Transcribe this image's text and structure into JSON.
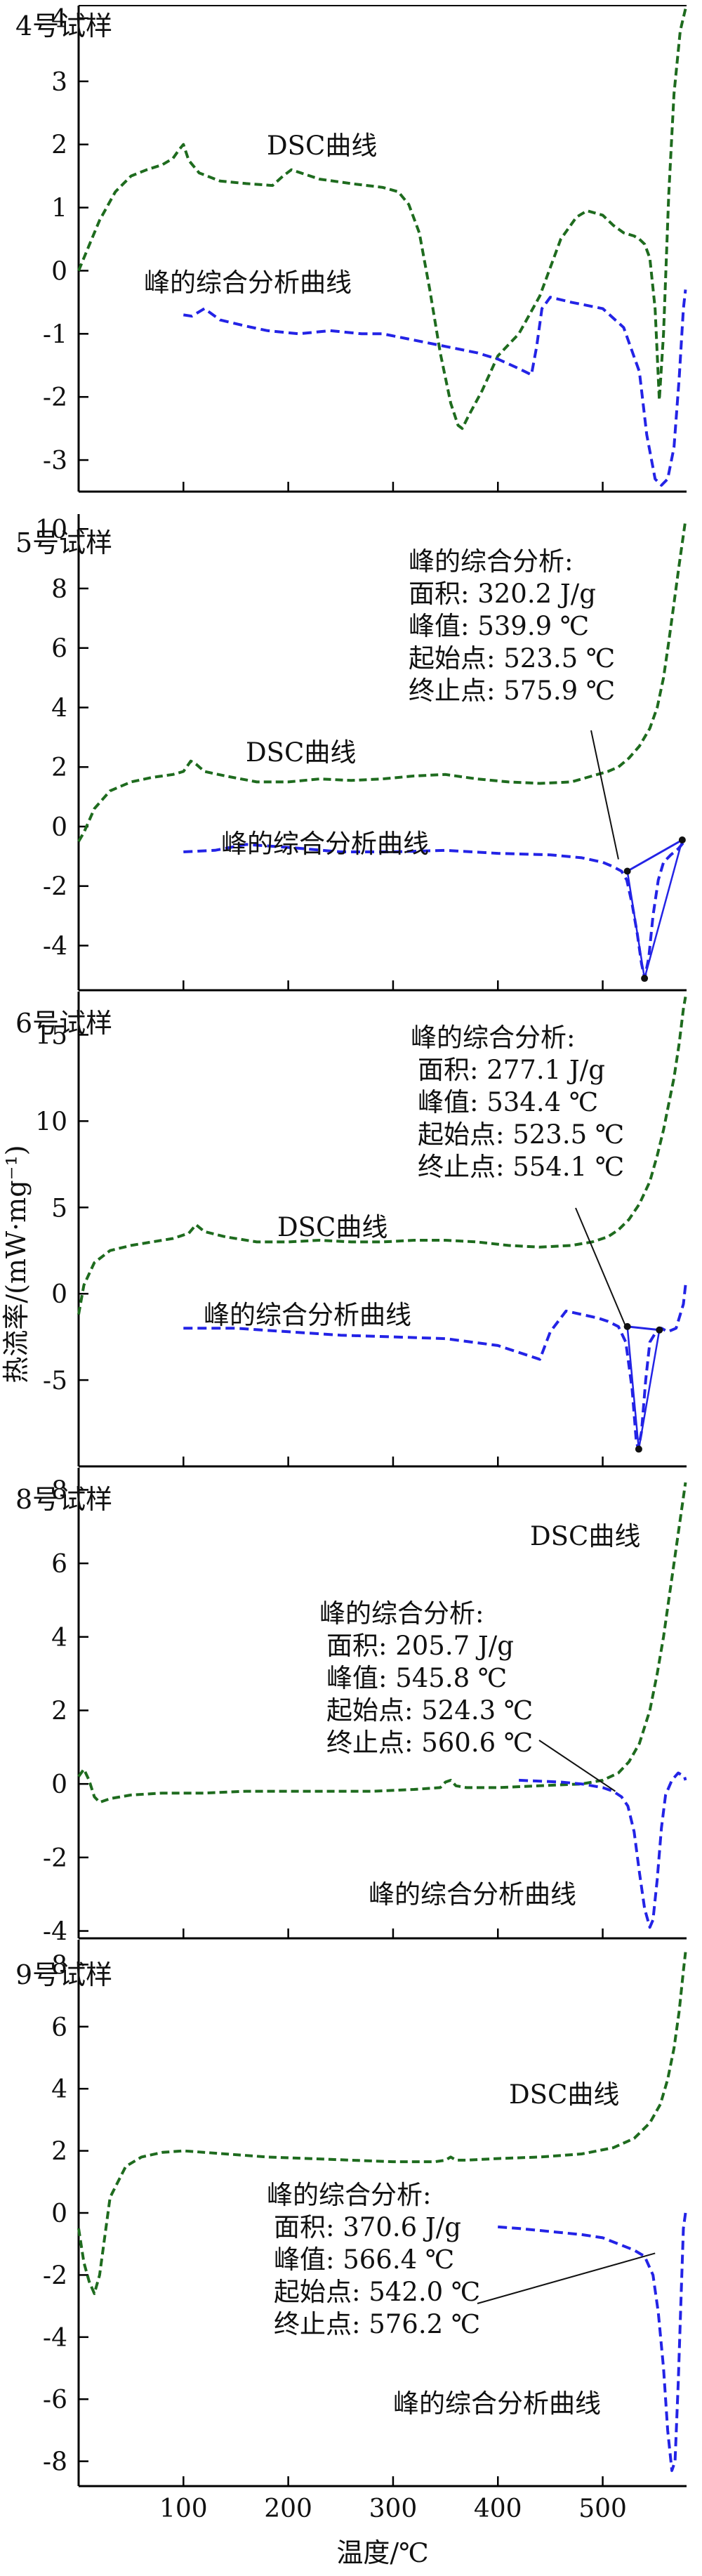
{
  "colors": {
    "dsc": "#1e6b1e",
    "peak": "#2323e6",
    "axis": "#000000"
  },
  "chart_data": {
    "type": "line",
    "shared_x": true,
    "xlabel": "温度/℃",
    "ylabel": "热流率/(mW·mg⁻¹)",
    "xlim": [
      0,
      580
    ],
    "xticks": [
      100,
      200,
      300,
      400,
      500
    ],
    "panels": [
      {
        "title": "4号试样",
        "ylim": [
          -3.5,
          4.2
        ],
        "yticks": [
          -3,
          -2,
          -1,
          0,
          1,
          2,
          3,
          4
        ],
        "dsc_label": "DSC曲线",
        "peak_label": "峰的综合分析曲线",
        "analysis": null,
        "series": [
          {
            "name": "DSC曲线",
            "style": "dsc",
            "x": [
              0,
              10,
              20,
              35,
              50,
              65,
              80,
              90,
              96,
              100,
              105,
              115,
              135,
              160,
              185,
              195,
              203,
              212,
              230,
              260,
              290,
              305,
              315,
              325,
              335,
              345,
              355,
              362,
              366,
              372,
              385,
              400,
              420,
              440,
              460,
              475,
              485,
              500,
              510,
              520,
              530,
              535,
              540,
              545,
              550,
              554,
              558,
              563,
              568,
              574,
              579
            ],
            "y": [
              0,
              0.4,
              0.8,
              1.25,
              1.5,
              1.6,
              1.68,
              1.78,
              1.92,
              2.0,
              1.75,
              1.55,
              1.42,
              1.38,
              1.35,
              1.5,
              1.6,
              1.55,
              1.45,
              1.38,
              1.32,
              1.25,
              1.05,
              0.6,
              -0.3,
              -1.3,
              -2.1,
              -2.45,
              -2.5,
              -2.3,
              -1.9,
              -1.35,
              -1.0,
              -0.4,
              0.5,
              0.85,
              0.95,
              0.88,
              0.72,
              0.6,
              0.55,
              0.5,
              0.42,
              0.2,
              -0.6,
              -2.05,
              -1.0,
              1.2,
              2.8,
              3.8,
              4.15
            ]
          },
          {
            "name": "峰的综合分析曲线",
            "style": "peak",
            "x": [
              100,
              108,
              115,
              120,
              135,
              160,
              180,
              210,
              240,
              270,
              290,
              320,
              350,
              380,
              400,
              420,
              432,
              437,
              442,
              450,
              470,
              500,
              520,
              535,
              542,
              550,
              556,
              562,
              568,
              573,
              577,
              579
            ],
            "y": [
              -0.7,
              -0.72,
              -0.65,
              -0.6,
              -0.78,
              -0.88,
              -0.95,
              -1.0,
              -0.95,
              -1.0,
              -1.0,
              -1.1,
              -1.2,
              -1.3,
              -1.4,
              -1.55,
              -1.65,
              -1.2,
              -0.6,
              -0.42,
              -0.5,
              -0.6,
              -0.9,
              -1.6,
              -2.6,
              -3.3,
              -3.4,
              -3.3,
              -2.8,
              -1.7,
              -0.6,
              -0.3
            ]
          }
        ]
      },
      {
        "title": "5号试样",
        "ylim": [
          -5.5,
          10.5
        ],
        "yticks": [
          -4,
          -2,
          0,
          2,
          4,
          6,
          8,
          10
        ],
        "dsc_label": "DSC曲线",
        "peak_label": "峰的综合分析曲线",
        "analysis": {
          "heading": "峰的综合分析:",
          "lines": [
            "面积: 320.2 J/g",
            "峰值: 539.9 ℃",
            "起始点: 523.5 ℃",
            "终止点: 575.9 ℃"
          ]
        },
        "series": [
          {
            "name": "DSC曲线",
            "style": "dsc",
            "x": [
              0,
              5,
              15,
              30,
              50,
              70,
              90,
              100,
              107,
              112,
              120,
              140,
              170,
              200,
              230,
              260,
              290,
              320,
              350,
              380,
              410,
              440,
              470,
              490,
              505,
              515,
              525,
              535,
              545,
              552,
              558,
              563,
              568,
              573,
              577,
              579
            ],
            "y": [
              -0.5,
              -0.2,
              0.6,
              1.2,
              1.5,
              1.65,
              1.75,
              1.85,
              2.2,
              2.1,
              1.85,
              1.7,
              1.5,
              1.5,
              1.6,
              1.55,
              1.6,
              1.7,
              1.75,
              1.6,
              1.5,
              1.45,
              1.5,
              1.7,
              1.85,
              2.0,
              2.3,
              2.7,
              3.3,
              4.0,
              5.0,
              6.2,
              7.5,
              8.8,
              9.8,
              10.3
            ]
          },
          {
            "name": "峰的综合分析曲线",
            "style": "peak",
            "x": [
              100,
              130,
              160,
              200,
              250,
              300,
              350,
              400,
              450,
              480,
              500,
              510,
              518,
              523,
              528,
              533,
              537,
              540,
              544,
              548,
              553,
              558,
              565,
              572,
              578,
              579
            ],
            "y": [
              -0.85,
              -0.8,
              -0.6,
              -0.7,
              -0.85,
              -0.85,
              -0.8,
              -0.9,
              -0.95,
              -1.05,
              -1.2,
              -1.35,
              -1.5,
              -1.8,
              -2.6,
              -3.6,
              -4.6,
              -5.1,
              -4.4,
              -3.0,
              -1.8,
              -1.2,
              -0.95,
              -0.75,
              -0.5,
              -0.45
            ]
          }
        ]
      },
      {
        "title": "6号试样",
        "ylim": [
          -10,
          17.5
        ],
        "yticks": [
          -5,
          0,
          5,
          10,
          15
        ],
        "dsc_label": "DSC曲线",
        "peak_label": "峰的综合分析曲线",
        "analysis": {
          "heading": "峰的综合分析:",
          "lines": [
            "面积: 277.1 J/g",
            "峰值: 534.4 ℃",
            "起始点: 523.5 ℃",
            "终止点: 554.1 ℃"
          ]
        },
        "series": [
          {
            "name": "DSC曲线",
            "style": "dsc",
            "x": [
              0,
              5,
              15,
              30,
              50,
              70,
              90,
              105,
              112,
              120,
              140,
              170,
              200,
              230,
              260,
              290,
              320,
              350,
              380,
              410,
              440,
              470,
              490,
              505,
              515,
              525,
              535,
              545,
              552,
              558,
              563,
              568,
              573,
              577,
              579
            ],
            "y": [
              -1.2,
              0.5,
              1.8,
              2.5,
              2.8,
              3.0,
              3.2,
              3.5,
              4.0,
              3.6,
              3.3,
              3.0,
              3.0,
              3.1,
              3.0,
              3.0,
              3.1,
              3.1,
              3.0,
              2.8,
              2.7,
              2.8,
              3.0,
              3.3,
              3.7,
              4.3,
              5.2,
              6.5,
              8.0,
              9.5,
              11.0,
              12.5,
              14.5,
              16.5,
              17.2
            ]
          },
          {
            "name": "峰的综合分析曲线",
            "style": "peak",
            "x": [
              100,
              150,
              200,
              250,
              300,
              350,
              400,
              425,
              440,
              450,
              465,
              480,
              495,
              505,
              515,
              522,
              528,
              532,
              534,
              537,
              541,
              545,
              550,
              556,
              562,
              570,
              577,
              579
            ],
            "y": [
              -2.0,
              -2.0,
              -2.2,
              -2.4,
              -2.5,
              -2.6,
              -3.0,
              -3.5,
              -3.8,
              -2.2,
              -1.0,
              -1.2,
              -1.4,
              -1.6,
              -1.9,
              -2.8,
              -5.5,
              -8.5,
              -9.0,
              -8.0,
              -5.0,
              -2.8,
              -2.3,
              -2.0,
              -2.2,
              -2.0,
              -0.6,
              0.5
            ]
          }
        ]
      },
      {
        "title": "8号试样",
        "ylim": [
          -4.2,
          8.6
        ],
        "yticks": [
          -4,
          -2,
          0,
          2,
          4,
          6,
          8
        ],
        "dsc_label": "DSC曲线",
        "peak_label": "峰的综合分析曲线",
        "analysis": {
          "heading": "峰的综合分析:",
          "lines": [
            "面积: 205.7 J/g",
            "峰值: 545.8 ℃",
            "起始点: 524.3 ℃",
            "终止点: 560.6 ℃"
          ]
        },
        "series": [
          {
            "name": "DSC曲线",
            "style": "dsc",
            "x": [
              0,
              5,
              10,
              15,
              20,
              30,
              50,
              80,
              120,
              160,
              200,
              240,
              280,
              320,
              345,
              350,
              355,
              360,
              370,
              400,
              440,
              480,
              500,
              515,
              525,
              535,
              545,
              552,
              558,
              563,
              568,
              573,
              577,
              579
            ],
            "y": [
              0.2,
              0.4,
              0.1,
              -0.35,
              -0.5,
              -0.4,
              -0.3,
              -0.25,
              -0.25,
              -0.2,
              -0.2,
              -0.2,
              -0.2,
              -0.15,
              -0.1,
              0.05,
              0.1,
              -0.05,
              -0.1,
              -0.1,
              -0.05,
              0.0,
              0.1,
              0.3,
              0.6,
              1.1,
              2.0,
              3.0,
              4.0,
              5.0,
              6.0,
              7.0,
              7.8,
              8.2
            ]
          },
          {
            "name": "峰的综合分析曲线",
            "style": "peak",
            "x": [
              420,
              460,
              480,
              500,
              510,
              518,
              524,
              530,
              535,
              540,
              545,
              548,
              552,
              556,
              560,
              566,
              572,
              578,
              579
            ],
            "y": [
              0.1,
              0.05,
              0.0,
              -0.1,
              -0.2,
              -0.35,
              -0.6,
              -1.3,
              -2.4,
              -3.4,
              -3.9,
              -3.7,
              -2.6,
              -1.2,
              -0.3,
              0.1,
              0.3,
              0.2,
              0.1
            ]
          }
        ]
      },
      {
        "title": "9号试样",
        "ylim": [
          -8.8,
          8.8
        ],
        "yticks": [
          -8,
          -6,
          -4,
          -2,
          0,
          2,
          4,
          6,
          8
        ],
        "dsc_label": "DSC曲线",
        "peak_label": "峰的综合分析曲线",
        "analysis": {
          "heading": "峰的综合分析:",
          "lines": [
            "面积: 370.6 J/g",
            "峰值: 566.4 ℃",
            "起始点: 542.0 ℃",
            "终止点: 576.2 ℃"
          ]
        },
        "series": [
          {
            "name": "DSC曲线",
            "style": "dsc",
            "x": [
              0,
              5,
              10,
              15,
              20,
              30,
              45,
              60,
              80,
              100,
              140,
              180,
              220,
              260,
              300,
              340,
              350,
              355,
              360,
              370,
              400,
              440,
              480,
              510,
              530,
              545,
              555,
              562,
              568,
              573,
              577,
              579
            ],
            "y": [
              -0.5,
              -1.6,
              -2.2,
              -2.6,
              -2.0,
              0.5,
              1.5,
              1.8,
              1.95,
              2.0,
              1.9,
              1.8,
              1.75,
              1.7,
              1.65,
              1.65,
              1.7,
              1.8,
              1.7,
              1.7,
              1.75,
              1.8,
              1.9,
              2.1,
              2.4,
              2.9,
              3.5,
              4.3,
              5.3,
              6.5,
              7.8,
              8.4
            ]
          },
          {
            "name": "峰的综合分析曲线",
            "style": "peak",
            "x": [
              400,
              420,
              450,
              480,
              500,
              515,
              530,
              540,
              548,
              553,
              558,
              562,
              566,
              569,
              572,
              575,
              577,
              579
            ],
            "y": [
              -0.45,
              -0.5,
              -0.6,
              -0.7,
              -0.8,
              -1.0,
              -1.2,
              -1.4,
              -2.0,
              -3.2,
              -5.0,
              -7.0,
              -8.3,
              -8.0,
              -5.5,
              -2.5,
              -0.5,
              0.0
            ]
          }
        ]
      }
    ]
  }
}
